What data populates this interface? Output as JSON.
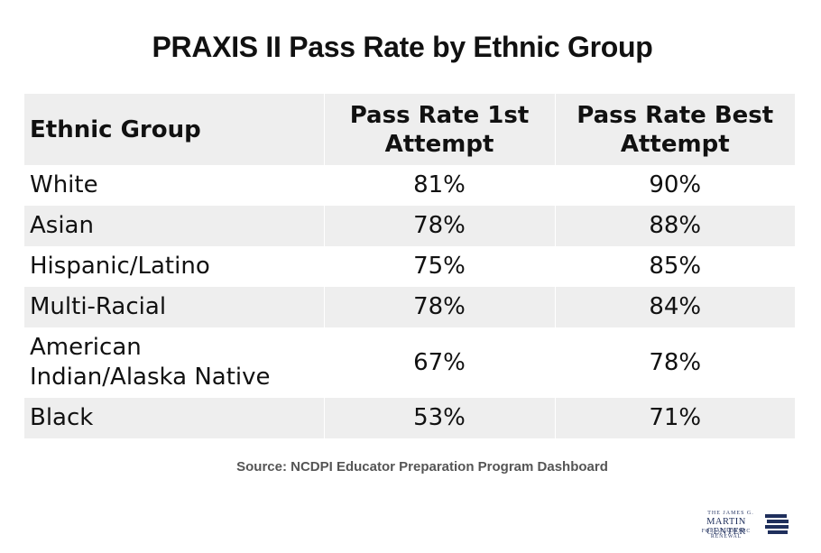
{
  "title": "PRAXIS II Pass Rate by Ethnic Group",
  "source": "Source: NCDPI Educator Preparation Program Dashboard",
  "logo": {
    "line1": "THE JAMES G.",
    "line2": "MARTIN CENTER",
    "line3": "FOR ACADEMIC RENEWAL"
  },
  "colors": {
    "stripe": "#eeeeee",
    "text": "#111111",
    "source": "#555555",
    "logo": "#1f2f5c"
  },
  "chart_data": {
    "type": "table",
    "title": "PRAXIS II Pass Rate by Ethnic Group",
    "columns": [
      "Ethnic Group",
      "Pass Rate 1st Attempt",
      "Pass Rate Best Attempt"
    ],
    "header_lines": [
      [
        "Ethnic Group"
      ],
      [
        "Pass Rate 1st",
        "Attempt"
      ],
      [
        "Pass Rate Best",
        "Attempt"
      ]
    ],
    "rows": [
      {
        "group_lines": [
          "White"
        ],
        "first": "81%",
        "best": "90%"
      },
      {
        "group_lines": [
          "Asian"
        ],
        "first": "78%",
        "best": "88%"
      },
      {
        "group_lines": [
          "Hispanic/Latino"
        ],
        "first": "75%",
        "best": "85%"
      },
      {
        "group_lines": [
          "Multi-Racial"
        ],
        "first": "78%",
        "best": "84%"
      },
      {
        "group_lines": [
          "American",
          "Indian/Alaska Native"
        ],
        "first": "67%",
        "best": "78%"
      },
      {
        "group_lines": [
          "Black"
        ],
        "first": "53%",
        "best": "71%"
      }
    ]
  }
}
